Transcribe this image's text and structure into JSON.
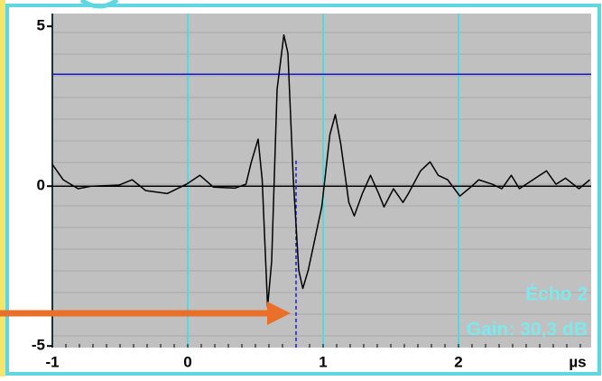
{
  "chart_data": {
    "type": "line",
    "x_label": "µs",
    "x": [
      -1,
      -0.92,
      -0.81,
      -0.71,
      -0.51,
      -0.41,
      -0.31,
      -0.15,
      -0.01,
      0.09,
      0.19,
      0.35,
      0.43,
      0.47,
      0.52,
      0.55,
      0.59,
      0.62,
      0.66,
      0.71,
      0.74,
      0.78,
      0.82,
      0.85,
      0.89,
      0.99,
      1.05,
      1.09,
      1.13,
      1.19,
      1.23,
      1.29,
      1.35,
      1.41,
      1.45,
      1.52,
      1.59,
      1.63,
      1.72,
      1.79,
      1.85,
      1.92,
      2.01,
      2.09,
      2.15,
      2.25,
      2.32,
      2.39,
      2.45,
      2.55,
      2.65,
      2.72,
      2.79,
      2.89,
      2.97
    ],
    "series": [
      {
        "color": "#000000",
        "values": [
          0.68,
          0.2,
          -0.08,
          0,
          0.03,
          0.2,
          -0.14,
          -0.23,
          0.06,
          0.34,
          -0.03,
          -0.06,
          0.06,
          0.76,
          1.47,
          0.2,
          -3.77,
          -2.35,
          3.03,
          4.73,
          4.16,
          0.2,
          -2.63,
          -3.2,
          -2.63,
          -0.65,
          1.61,
          2.24,
          1.33,
          -0.51,
          -0.93,
          -0.23,
          0.34,
          -0.23,
          -0.65,
          -0.08,
          -0.51,
          -0.23,
          0.48,
          0.76,
          0.34,
          0.2,
          -0.31,
          -0.03,
          0.2,
          0.06,
          -0.08,
          0.34,
          -0.08,
          0.2,
          0.48,
          0.06,
          0.25,
          -0.08,
          0.2
        ]
      }
    ],
    "xlim": [
      -1,
      2.98
    ],
    "xticks": [
      -1,
      0,
      1,
      2
    ],
    "ylim": [
      -5.05,
      5.4
    ],
    "yticks": [
      -5,
      0,
      5
    ],
    "threshold": 3.5,
    "threshold_color": "#1a1acc",
    "marker_x": 0.8,
    "grid_color": "#55d8e0",
    "annotations": [
      "Écho 2",
      "Gain: 30,3 dB"
    ]
  }
}
